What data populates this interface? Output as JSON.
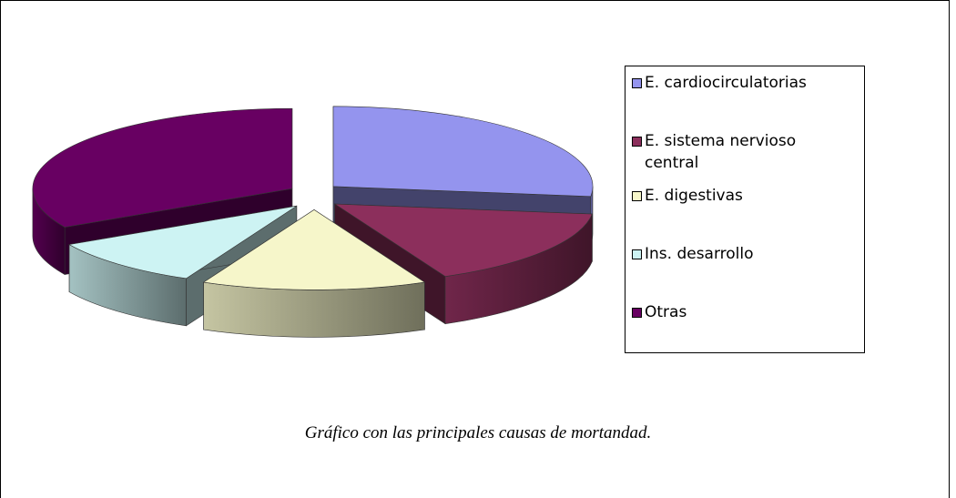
{
  "chart_data": {
    "type": "pie",
    "categories": [
      "E. cardiocirculatorias",
      "E. sistema nervioso central",
      "E. digestivas",
      "Ins. desarrollo",
      "Otras"
    ],
    "values": [
      27,
      16,
      14,
      10,
      33
    ],
    "colors": [
      "#9494ee",
      "#8c2f5c",
      "#f6f6ca",
      "#cdf3f3",
      "#680062"
    ],
    "legend": "right"
  },
  "caption": "Gráfico con las principales causas de mortandad."
}
